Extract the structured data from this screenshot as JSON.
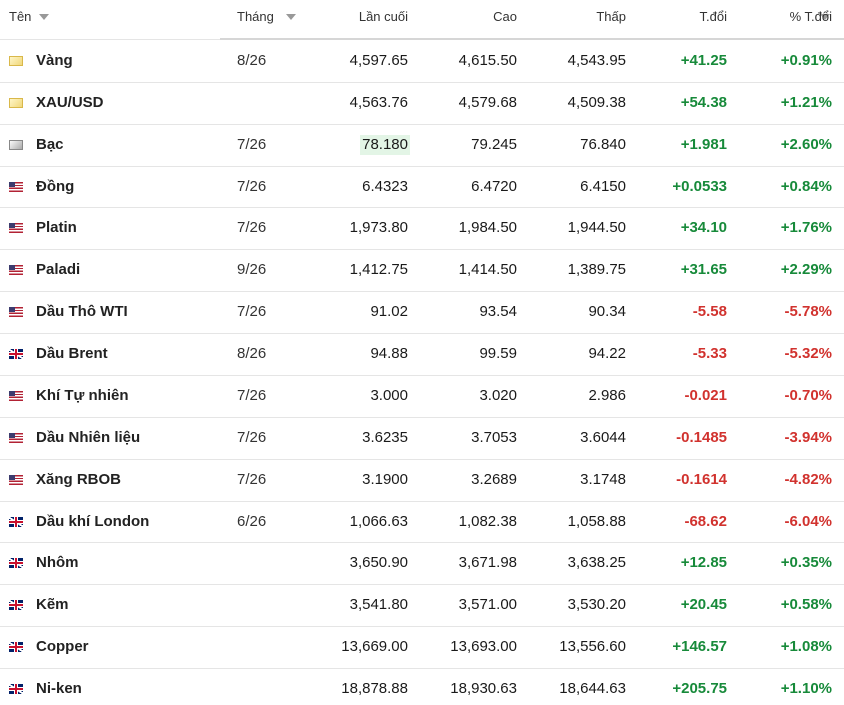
{
  "table": {
    "header": [
      "Tên",
      "Tháng",
      "Lần cuối",
      "Cao",
      "Thấp",
      "T.đổi",
      "% T.đổi"
    ],
    "rows": [
      [
        "Vàng",
        "8/26",
        "4,597.65",
        "4,615.50",
        "4,543.95",
        "+41.25",
        "+0.91%"
      ],
      [
        "XAU/USD",
        null,
        "4,563.76",
        "4,579.68",
        "4,509.38",
        "+54.38",
        "+1.21%"
      ],
      [
        "Bạc",
        "7/26",
        "78.180",
        "79.245",
        "76.840",
        "+1.981",
        "+2.60%"
      ],
      [
        "Đồng",
        "7/26",
        "6.4323",
        "6.4720",
        "6.4150",
        "+0.0533",
        "+0.84%"
      ],
      [
        "Platin",
        "7/26",
        "1,973.80",
        "1,984.50",
        "1,944.50",
        "+34.10",
        "+1.76%"
      ],
      [
        "Paladi",
        "9/26",
        "1,412.75",
        "1,414.50",
        "1,389.75",
        "+31.65",
        "+2.29%"
      ],
      [
        "Dầu Thô WTI",
        "7/26",
        "91.02",
        "93.54",
        "90.34",
        "-5.58",
        "-5.78%"
      ],
      [
        "Dầu Brent",
        "8/26",
        "94.88",
        "99.59",
        "94.22",
        "-5.33",
        "-5.32%"
      ],
      [
        "Khí Tự nhiên",
        "7/26",
        "3.000",
        "3.020",
        "2.986",
        "-0.021",
        "-0.70%"
      ],
      [
        "Dầu Nhiên liệu",
        "7/26",
        "3.6235",
        "3.7053",
        "3.6044",
        "-0.1485",
        "-3.94%"
      ],
      [
        "Xăng RBOB",
        "7/26",
        "3.1900",
        "3.2689",
        "3.1748",
        "-0.1614",
        "-4.82%"
      ],
      [
        "Dầu khí London",
        "6/26",
        "1,066.63",
        "1,082.38",
        "1,058.88",
        "-68.62",
        "-6.04%"
      ],
      [
        "Nhôm",
        null,
        "3,650.90",
        "3,671.98",
        "3,638.25",
        "+12.85",
        "+0.35%"
      ],
      [
        "Kẽm",
        null,
        "3,541.80",
        "3,571.00",
        "3,530.20",
        "+20.45",
        "+0.58%"
      ],
      [
        "Copper",
        null,
        "13,669.00",
        "13,693.00",
        "13,556.60",
        "+146.57",
        "+1.08%"
      ],
      [
        "Ni-ken",
        null,
        "18,878.88",
        "18,930.63",
        "18,644.63",
        "+205.75",
        "+1.10%"
      ]
    ]
  }
}
